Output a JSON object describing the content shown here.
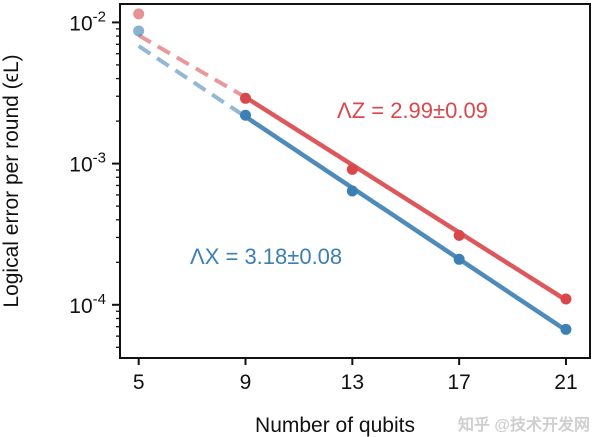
{
  "chart_data": {
    "type": "line",
    "xlabel": "Number of qubits",
    "ylabel": "Logical error per round (ϵL)",
    "x_ticks": [
      5,
      9,
      13,
      17,
      21
    ],
    "y_ticks": [
      {
        "value": 0.01,
        "base": "10",
        "exp": "-2"
      },
      {
        "value": 0.001,
        "base": "10",
        "exp": "-3"
      },
      {
        "value": 0.0001,
        "base": "10",
        "exp": "-4"
      }
    ],
    "xlim": [
      4.3,
      21.9
    ],
    "ylim": [
      4.2e-05,
      0.0135
    ],
    "y_scale": "log",
    "grid": false,
    "series": [
      {
        "key": "Z",
        "color": "#d9474b",
        "x": [
          5,
          9,
          13,
          17,
          21
        ],
        "values": [
          0.0115,
          0.0029,
          0.00091,
          0.00031,
          0.00011
        ],
        "fit_extrapolated": {
          "x": [
            5,
            9
          ],
          "y": [
            0.0081,
            0.00295
          ]
        },
        "fit": {
          "x": [
            9,
            21
          ],
          "y": [
            0.00295,
            0.000108
          ]
        }
      },
      {
        "key": "X",
        "color": "#3b7fb4",
        "x": [
          5,
          9,
          13,
          17,
          21
        ],
        "values": [
          0.0087,
          0.0022,
          0.00064,
          0.00021,
          6.7e-05
        ],
        "fit_extrapolated": {
          "x": [
            5,
            9
          ],
          "y": [
            0.0068,
            0.00215
          ]
        },
        "fit": {
          "x": [
            9,
            21
          ],
          "y": [
            0.00215,
            6.6e-05
          ]
        }
      }
    ],
    "annotations": [
      {
        "label": "ΛZ = 2.99±0.09",
        "color": "#d9474b"
      },
      {
        "label": "ΛX = 3.18±0.08",
        "color": "#3b7fb4"
      }
    ],
    "watermark": "知乎 @技术开发网"
  }
}
